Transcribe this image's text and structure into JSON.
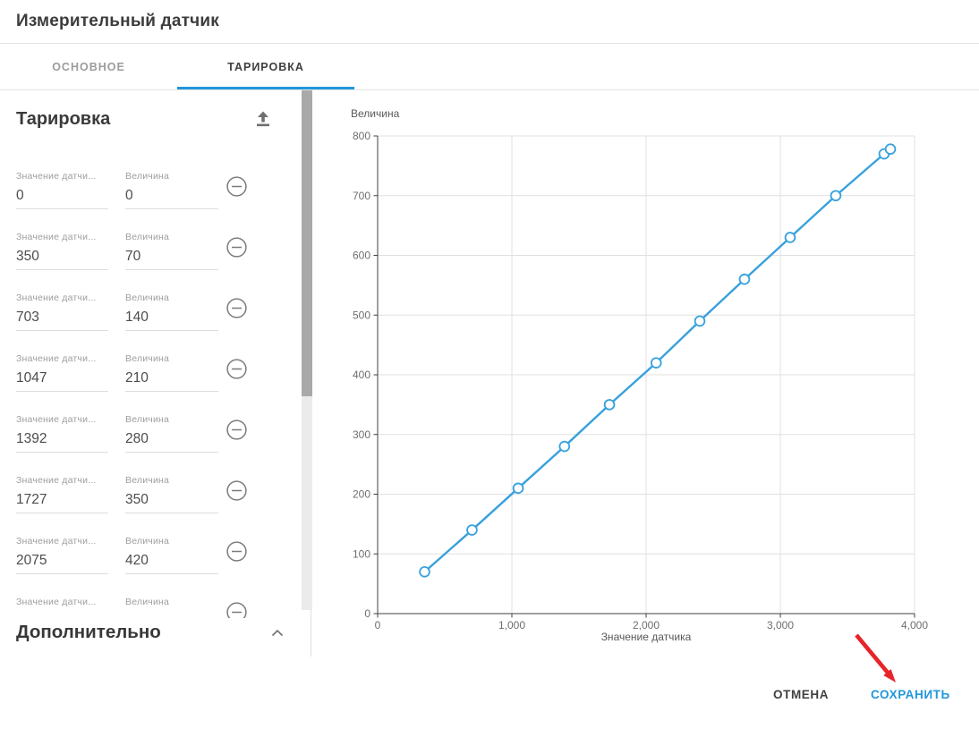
{
  "dialog": {
    "title": "Измерительный датчик"
  },
  "tabs": [
    {
      "label": "ОСНОВНОЕ",
      "active": false
    },
    {
      "label": "ТАРИРОВКА",
      "active": true
    }
  ],
  "panel": {
    "heading": "Тарировка",
    "upload_icon": "upload-icon",
    "additional_heading": "Дополнительно",
    "collapse_icon": "chevron-up-icon",
    "remove_icon": "minus-circle-icon",
    "rows": [
      {
        "sensor_label": "Значение датчи...",
        "value_label": "Величина",
        "sensor": "0",
        "value": "0"
      },
      {
        "sensor_label": "Значение датчи...",
        "value_label": "Величина",
        "sensor": "350",
        "value": "70"
      },
      {
        "sensor_label": "Значение датчи...",
        "value_label": "Величина",
        "sensor": "703",
        "value": "140"
      },
      {
        "sensor_label": "Значение датчи...",
        "value_label": "Величина",
        "sensor": "1047",
        "value": "210"
      },
      {
        "sensor_label": "Значение датчи...",
        "value_label": "Величина",
        "sensor": "1392",
        "value": "280"
      },
      {
        "sensor_label": "Значение датчи...",
        "value_label": "Величина",
        "sensor": "1727",
        "value": "350"
      },
      {
        "sensor_label": "Значение датчи...",
        "value_label": "Величина",
        "sensor": "2075",
        "value": "420"
      },
      {
        "sensor_label": "Значение датчи...",
        "value_label": "Величина",
        "sensor": "",
        "value": ""
      }
    ]
  },
  "footer": {
    "cancel_label": "ОТМЕНА",
    "save_label": "СОХРАНИТЬ"
  },
  "colors": {
    "accent_blue": "#2196db",
    "chart_line": "#38a1dc",
    "arrow_red": "#e7242a",
    "axis": "#404040",
    "grid": "#e0e0e0"
  },
  "chart_data": {
    "type": "line",
    "title": "",
    "xlabel": "Значение датчика",
    "ylabel": "Величина",
    "xlim": [
      0,
      4000
    ],
    "ylim": [
      0,
      800
    ],
    "x_ticks": [
      0,
      1000,
      2000,
      3000,
      4000
    ],
    "x_tick_labels": [
      "0",
      "1,000",
      "2,000",
      "3,000",
      "4,000"
    ],
    "y_ticks": [
      0,
      100,
      200,
      300,
      400,
      500,
      600,
      700,
      800
    ],
    "grid": true,
    "legend": "none",
    "marker": "open-circle",
    "points": [
      [
        350,
        70
      ],
      [
        703,
        140
      ],
      [
        1047,
        210
      ],
      [
        1392,
        280
      ],
      [
        1727,
        350
      ],
      [
        2075,
        420
      ],
      [
        2400,
        490
      ],
      [
        2733,
        560
      ],
      [
        3073,
        630
      ],
      [
        3413,
        700
      ],
      [
        3773,
        770
      ],
      [
        3820,
        778
      ]
    ]
  }
}
